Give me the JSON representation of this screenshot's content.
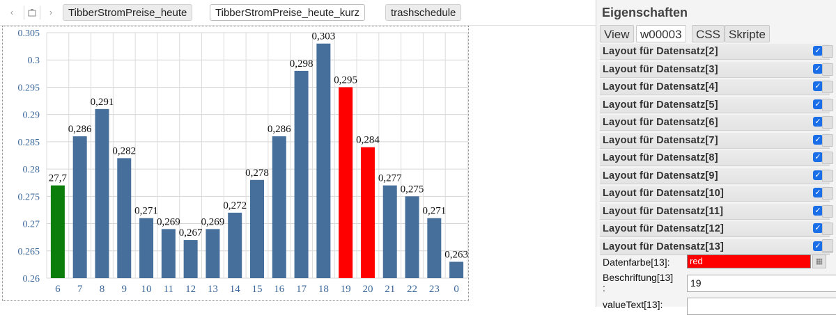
{
  "nav": {
    "back_icon": "chevron-left",
    "folder_icon": "folder",
    "forward_icon": "chevron-right"
  },
  "tabs": [
    {
      "label": "TibberStromPreise_heute"
    },
    {
      "label": "TibberStromPreise_heute_kurz"
    },
    {
      "label": "trashschedule"
    }
  ],
  "chart_data": {
    "type": "bar",
    "categories": [
      "6",
      "7",
      "8",
      "9",
      "10",
      "11",
      "12",
      "13",
      "14",
      "15",
      "16",
      "17",
      "18",
      "19",
      "20",
      "21",
      "22",
      "23",
      "0"
    ],
    "values": [
      0.277,
      0.286,
      0.291,
      0.282,
      0.271,
      0.269,
      0.267,
      0.269,
      0.272,
      0.278,
      0.286,
      0.298,
      0.303,
      0.295,
      0.284,
      0.277,
      0.275,
      0.271,
      0.263
    ],
    "data_labels": [
      "27,7",
      "0,286",
      "0,291",
      "0,282",
      "0,271",
      "0,269",
      "0,267",
      "0,269",
      "0,272",
      "0,278",
      "0,286",
      "0,298",
      "0,303",
      "0,295",
      "0,284",
      "0,277",
      "0,275",
      "0,271",
      "0,263"
    ],
    "bar_colors": [
      "#0a7d0a",
      "#46709b",
      "#46709b",
      "#46709b",
      "#46709b",
      "#46709b",
      "#46709b",
      "#46709b",
      "#46709b",
      "#46709b",
      "#46709b",
      "#46709b",
      "#46709b",
      "#ff0000",
      "#ff0000",
      "#46709b",
      "#46709b",
      "#46709b",
      "#46709b"
    ],
    "y_ticks": [
      "0.305",
      "0.3",
      "0.295",
      "0.29",
      "0.285",
      "0.28",
      "0.275",
      "0.27",
      "0.265",
      "0.26"
    ],
    "ylim": [
      0.26,
      0.305
    ],
    "grid": true,
    "title": "",
    "xlabel": "",
    "ylabel": ""
  },
  "panel": {
    "title": "Eigenschaften",
    "tabs": [
      "View",
      "w00003",
      "CSS",
      "Skripte"
    ],
    "rows": [
      "Layout für Datensatz[2]",
      "Layout für Datensatz[3]",
      "Layout für Datensatz[4]",
      "Layout für Datensatz[5]",
      "Layout für Datensatz[6]",
      "Layout für Datensatz[7]",
      "Layout für Datensatz[8]",
      "Layout für Datensatz[9]",
      "Layout für Datensatz[10]",
      "Layout für Datensatz[11]",
      "Layout für Datensatz[12]",
      "Layout für Datensatz[13]"
    ],
    "fields": {
      "datenfarbe_label": "Datenfarbe[13]:",
      "datenfarbe_value": "red",
      "beschriftung_label_1": "Beschriftung[13]",
      "beschriftung_label_2": ":",
      "beschriftung_value": "19",
      "valuetext_label": "valueText[13]:"
    },
    "accent_color": "#1a6fe8"
  }
}
